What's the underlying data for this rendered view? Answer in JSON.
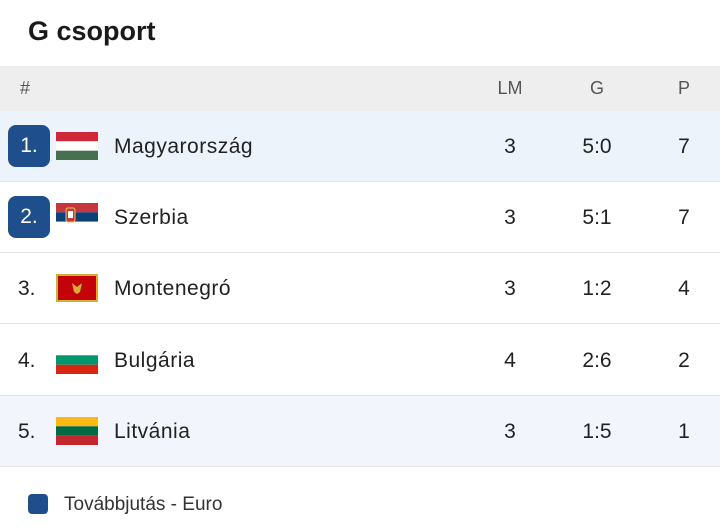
{
  "header": {
    "title": "G csoport"
  },
  "table": {
    "columns": [
      "#",
      "LM",
      "G",
      "P"
    ],
    "rows": [
      {
        "rank": "1.",
        "team": "Magyarország",
        "lm": 3,
        "g": "5:0",
        "p": 7
      },
      {
        "rank": "2.",
        "team": "Szerbia",
        "lm": 3,
        "g": "5:1",
        "p": 7
      },
      {
        "rank": "3.",
        "team": "Montenegró",
        "lm": 3,
        "g": "1:2",
        "p": 4
      },
      {
        "rank": "4.",
        "team": "Bulgária",
        "lm": 4,
        "g": "2:6",
        "p": 2
      },
      {
        "rank": "5.",
        "team": "Litvánia",
        "lm": 3,
        "g": "1:5",
        "p": 1
      }
    ]
  },
  "legend": {
    "label": "Továbbjutás - Euro"
  }
}
